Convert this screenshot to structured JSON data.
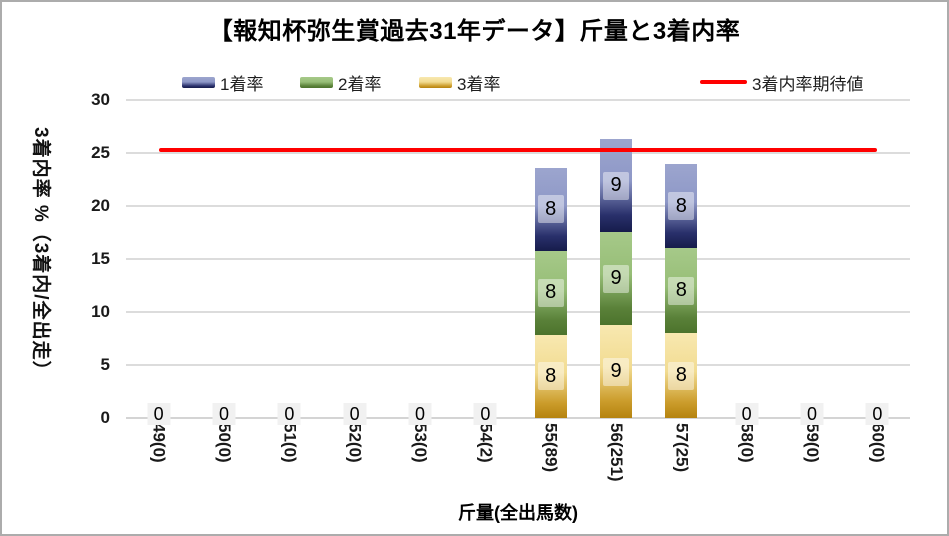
{
  "title": "【報知杯弥生賞過去31年データ】斤量と3着内率",
  "chart_data": {
    "type": "bar",
    "stacked": true,
    "title": "【報知杯弥生賞過去31年データ】斤量と3着内率",
    "xlabel": "斤量(全出馬数)",
    "ylabel": "3着内率 %（3着内/全出走）",
    "ylim": [
      0,
      30
    ],
    "yticks": [
      0,
      5,
      10,
      15,
      20,
      25,
      30
    ],
    "grid": "horizontal",
    "legend_position": "top",
    "categories": [
      "49(0)",
      "50(0)",
      "51(0)",
      "52(0)",
      "53(0)",
      "54(2)",
      "55(89)",
      "56(251)",
      "57(25)",
      "58(0)",
      "59(0)",
      "60(0)"
    ],
    "series": [
      {
        "name": "3着率",
        "stack_position": "bottom",
        "values": [
          0,
          0,
          0,
          0,
          0,
          0,
          7.87,
          8.76,
          8,
          0,
          0,
          0
        ],
        "labels": [
          "",
          "",
          "",
          "",
          "",
          "",
          "8",
          "9",
          "8",
          "",
          "",
          ""
        ],
        "gradient": [
          "#F8E8B0",
          "#F2DC92",
          "#CB9C2B",
          "#B5830F"
        ]
      },
      {
        "name": "2着率",
        "stack_position": "middle",
        "values": [
          0,
          0,
          0,
          0,
          0,
          0,
          7.87,
          8.76,
          8,
          0,
          0,
          0
        ],
        "labels": [
          "",
          "",
          "",
          "",
          "",
          "",
          "8",
          "9",
          "8",
          "",
          "",
          ""
        ],
        "gradient": [
          "#A6C989",
          "#97BE77",
          "#5A8139",
          "#4C732C"
        ]
      },
      {
        "name": "1着率",
        "stack_position": "top",
        "values": [
          0,
          0,
          0,
          0,
          0,
          0,
          7.87,
          8.76,
          8,
          0,
          0,
          0
        ],
        "labels": [
          "",
          "",
          "",
          "",
          "",
          "",
          "8",
          "9",
          "8",
          "",
          "",
          ""
        ],
        "gradient": [
          "#9CA5CE",
          "#8E98C7",
          "#29306B",
          "#161C4B"
        ]
      }
    ],
    "zero_label_text": "0",
    "expected_line": {
      "name": "3着内率期待値",
      "value": 25.3,
      "color": "#FF0000"
    }
  },
  "colors": {
    "background": "#FFFFFF",
    "outer_border": "#ACACAC",
    "gridline": "#DCDCDC",
    "axis_line": "#D4D4D4",
    "tick_text": "#1A1A1A",
    "zero_label_bg": "#F1F1F1"
  }
}
